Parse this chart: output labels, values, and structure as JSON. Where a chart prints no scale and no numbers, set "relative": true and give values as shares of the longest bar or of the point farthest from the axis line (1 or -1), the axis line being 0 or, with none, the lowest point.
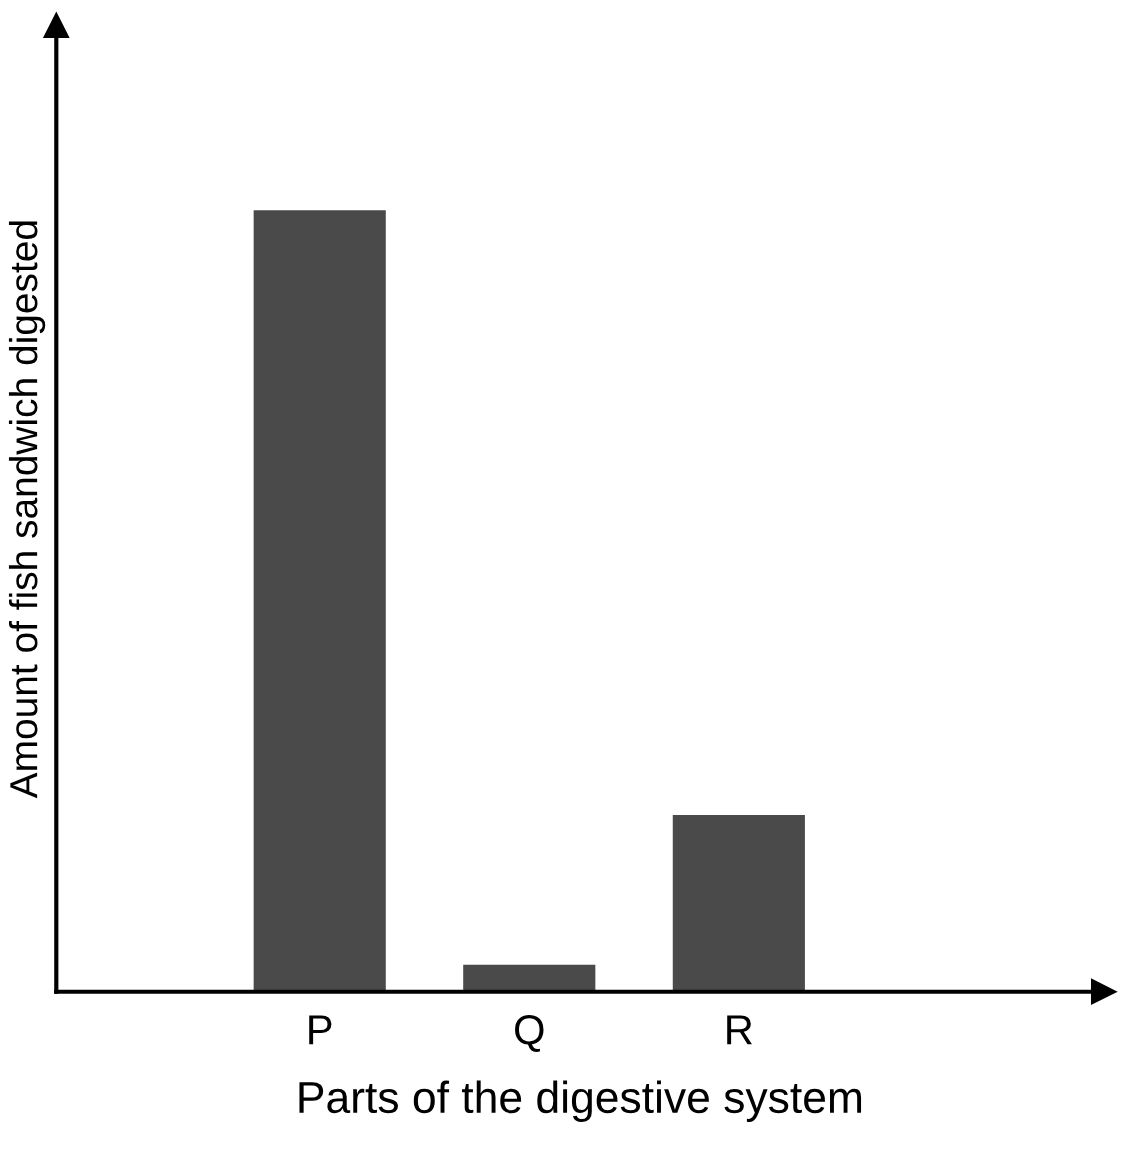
{
  "chart_data": {
    "type": "bar",
    "relative": true,
    "xlabel": "Parts of the digestive system",
    "ylabel": "Amount of fish sandwich digested",
    "categories": [
      "P",
      "Q",
      "R"
    ],
    "values": [
      1,
      0.033,
      0.225
    ],
    "color": "#4a4a4a",
    "grid": false,
    "legend": false
  }
}
